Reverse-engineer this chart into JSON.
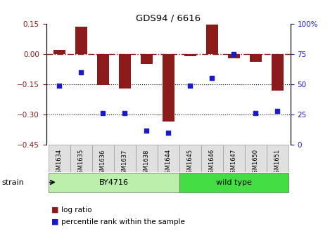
{
  "title": "GDS94 / 6616",
  "samples": [
    "GSM1634",
    "GSM1635",
    "GSM1636",
    "GSM1637",
    "GSM1638",
    "GSM1644",
    "GSM1645",
    "GSM1646",
    "GSM1647",
    "GSM1650",
    "GSM1651"
  ],
  "log_ratio": [
    0.02,
    0.135,
    -0.155,
    -0.17,
    -0.05,
    -0.335,
    -0.01,
    0.145,
    -0.02,
    -0.04,
    -0.18
  ],
  "percentile_rank": [
    49,
    60,
    26,
    26,
    12,
    10,
    49,
    55,
    75,
    26,
    28
  ],
  "bar_color": "#8B1A1A",
  "dot_color": "#1A1ACD",
  "groups": [
    {
      "label": "BY4716",
      "start": 0,
      "end": 5,
      "color": "#BBEEAA"
    },
    {
      "label": "wild type",
      "start": 6,
      "end": 10,
      "color": "#44DD44"
    }
  ],
  "ylim_left": [
    -0.45,
    0.15
  ],
  "ylim_right": [
    0,
    100
  ],
  "yticks_left": [
    -0.45,
    -0.3,
    -0.15,
    0,
    0.15
  ],
  "yticks_right": [
    0,
    25,
    50,
    75,
    100
  ],
  "dotted_lines": [
    -0.15,
    -0.3
  ],
  "background_color": "#ffffff",
  "legend_log_ratio": "log ratio",
  "legend_percentile": "percentile rank within the sample",
  "strain_label": "strain"
}
